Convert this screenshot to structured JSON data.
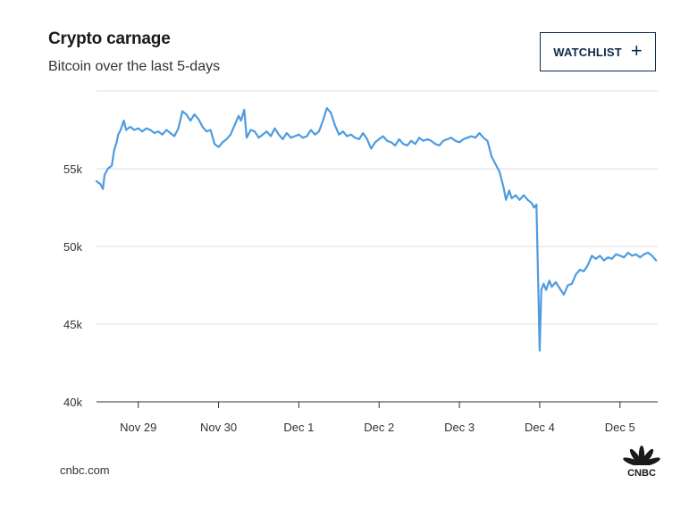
{
  "header": {
    "title": "Crypto carnage",
    "subtitle": "Bitcoin over the last 5-days"
  },
  "watchlist_button": {
    "label": "WATCHLIST",
    "icon": "plus-icon"
  },
  "footer": {
    "source": "cnbc.com",
    "logo_text": "CNBC",
    "logo_icon": "peacock-logo-icon"
  },
  "colors": {
    "line": "#4d9be0",
    "grid": "#dddddd",
    "axis": "#333333",
    "button_border": "#0f2a4a"
  },
  "chart_data": {
    "type": "line",
    "title": "Crypto carnage",
    "subtitle": "Bitcoin over the last 5-days",
    "xlabel": "",
    "ylabel": "",
    "x_ticks": [
      "Nov 29",
      "Nov 30",
      "Dec 1",
      "Dec 2",
      "Dec 3",
      "Dec 4",
      "Dec 5"
    ],
    "x_tick_values": [
      0,
      1,
      2,
      3,
      4,
      5,
      6
    ],
    "y_ticks": [
      "40k",
      "45k",
      "50k",
      "55k"
    ],
    "y_tick_values": [
      40000,
      45000,
      50000,
      55000
    ],
    "ylim": [
      40000,
      60000
    ],
    "xlim": [
      -0.52,
      6.47
    ],
    "grid": true,
    "series": [
      {
        "values": [
          [
            -0.52,
            54200
          ],
          [
            -0.47,
            54000
          ],
          [
            -0.44,
            53700
          ],
          [
            -0.42,
            54600
          ],
          [
            -0.38,
            55000
          ],
          [
            -0.33,
            55200
          ],
          [
            -0.3,
            56200
          ],
          [
            -0.27,
            56700
          ],
          [
            -0.25,
            57200
          ],
          [
            -0.22,
            57500
          ],
          [
            -0.18,
            58100
          ],
          [
            -0.15,
            57500
          ],
          [
            -0.1,
            57700
          ],
          [
            -0.05,
            57500
          ],
          [
            0.0,
            57600
          ],
          [
            0.05,
            57400
          ],
          [
            0.1,
            57600
          ],
          [
            0.15,
            57500
          ],
          [
            0.2,
            57300
          ],
          [
            0.25,
            57400
          ],
          [
            0.3,
            57200
          ],
          [
            0.35,
            57500
          ],
          [
            0.4,
            57300
          ],
          [
            0.45,
            57100
          ],
          [
            0.5,
            57600
          ],
          [
            0.55,
            58700
          ],
          [
            0.6,
            58500
          ],
          [
            0.65,
            58100
          ],
          [
            0.7,
            58500
          ],
          [
            0.75,
            58200
          ],
          [
            0.8,
            57700
          ],
          [
            0.85,
            57400
          ],
          [
            0.9,
            57500
          ],
          [
            0.95,
            56600
          ],
          [
            1.0,
            56400
          ],
          [
            1.05,
            56700
          ],
          [
            1.1,
            56900
          ],
          [
            1.15,
            57200
          ],
          [
            1.2,
            57800
          ],
          [
            1.25,
            58400
          ],
          [
            1.28,
            58100
          ],
          [
            1.32,
            58800
          ],
          [
            1.35,
            57000
          ],
          [
            1.4,
            57500
          ],
          [
            1.45,
            57400
          ],
          [
            1.5,
            57000
          ],
          [
            1.55,
            57200
          ],
          [
            1.6,
            57400
          ],
          [
            1.65,
            57100
          ],
          [
            1.7,
            57600
          ],
          [
            1.75,
            57200
          ],
          [
            1.8,
            56900
          ],
          [
            1.85,
            57300
          ],
          [
            1.9,
            57000
          ],
          [
            1.95,
            57100
          ],
          [
            2.0,
            57200
          ],
          [
            2.05,
            57000
          ],
          [
            2.1,
            57100
          ],
          [
            2.15,
            57500
          ],
          [
            2.2,
            57200
          ],
          [
            2.25,
            57400
          ],
          [
            2.3,
            58100
          ],
          [
            2.35,
            58900
          ],
          [
            2.4,
            58600
          ],
          [
            2.45,
            57800
          ],
          [
            2.5,
            57200
          ],
          [
            2.55,
            57400
          ],
          [
            2.6,
            57100
          ],
          [
            2.65,
            57200
          ],
          [
            2.7,
            57000
          ],
          [
            2.75,
            56900
          ],
          [
            2.8,
            57300
          ],
          [
            2.85,
            56900
          ],
          [
            2.9,
            56300
          ],
          [
            2.95,
            56700
          ],
          [
            3.0,
            56900
          ],
          [
            3.05,
            57100
          ],
          [
            3.1,
            56800
          ],
          [
            3.15,
            56700
          ],
          [
            3.2,
            56500
          ],
          [
            3.25,
            56900
          ],
          [
            3.3,
            56600
          ],
          [
            3.35,
            56500
          ],
          [
            3.4,
            56800
          ],
          [
            3.45,
            56600
          ],
          [
            3.5,
            57000
          ],
          [
            3.55,
            56800
          ],
          [
            3.6,
            56900
          ],
          [
            3.65,
            56800
          ],
          [
            3.7,
            56600
          ],
          [
            3.75,
            56500
          ],
          [
            3.8,
            56800
          ],
          [
            3.85,
            56900
          ],
          [
            3.9,
            57000
          ],
          [
            3.95,
            56800
          ],
          [
            4.0,
            56700
          ],
          [
            4.05,
            56900
          ],
          [
            4.1,
            57000
          ],
          [
            4.15,
            57100
          ],
          [
            4.2,
            57000
          ],
          [
            4.25,
            57300
          ],
          [
            4.3,
            57000
          ],
          [
            4.35,
            56800
          ],
          [
            4.4,
            55800
          ],
          [
            4.45,
            55300
          ],
          [
            4.5,
            54800
          ],
          [
            4.55,
            53800
          ],
          [
            4.58,
            53000
          ],
          [
            4.62,
            53600
          ],
          [
            4.65,
            53100
          ],
          [
            4.7,
            53300
          ],
          [
            4.75,
            53000
          ],
          [
            4.8,
            53300
          ],
          [
            4.85,
            53000
          ],
          [
            4.9,
            52800
          ],
          [
            4.93,
            52500
          ],
          [
            4.96,
            52700
          ],
          [
            4.98,
            48000
          ],
          [
            5.0,
            43300
          ],
          [
            5.02,
            47200
          ],
          [
            5.05,
            47600
          ],
          [
            5.08,
            47200
          ],
          [
            5.12,
            47800
          ],
          [
            5.15,
            47400
          ],
          [
            5.2,
            47700
          ],
          [
            5.25,
            47300
          ],
          [
            5.3,
            46900
          ],
          [
            5.35,
            47500
          ],
          [
            5.4,
            47600
          ],
          [
            5.45,
            48200
          ],
          [
            5.5,
            48500
          ],
          [
            5.55,
            48400
          ],
          [
            5.6,
            48800
          ],
          [
            5.65,
            49400
          ],
          [
            5.7,
            49200
          ],
          [
            5.75,
            49400
          ],
          [
            5.8,
            49100
          ],
          [
            5.85,
            49300
          ],
          [
            5.9,
            49200
          ],
          [
            5.95,
            49500
          ],
          [
            6.0,
            49400
          ],
          [
            6.05,
            49300
          ],
          [
            6.1,
            49600
          ],
          [
            6.15,
            49400
          ],
          [
            6.2,
            49500
          ],
          [
            6.25,
            49300
          ],
          [
            6.3,
            49500
          ],
          [
            6.35,
            49600
          ],
          [
            6.4,
            49400
          ],
          [
            6.45,
            49100
          ]
        ]
      }
    ]
  }
}
